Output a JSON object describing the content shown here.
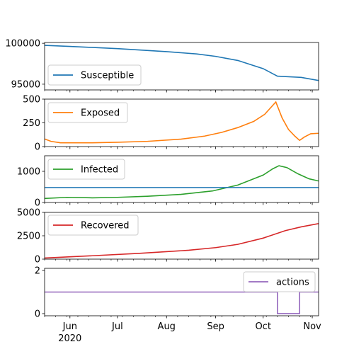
{
  "chart_data": {
    "type": "line",
    "x_axis": {
      "tick_labels": [
        "Jun",
        "Jul",
        "Aug",
        "Sep",
        "Oct",
        "Nov"
      ],
      "tick_dates": [
        "2020-06-01",
        "2020-07-01",
        "2020-08-01",
        "2020-09-01",
        "2020-10-01",
        "2020-11-01"
      ],
      "year_label": "2020",
      "xlim": [
        "2020-05-16",
        "2020-11-05"
      ]
    },
    "panels": [
      {
        "ylim": [
          94300,
          100100
        ],
        "yticks": [
          95000,
          100000
        ],
        "ytick_labels": [
          "95000",
          "100000"
        ],
        "legend_position": "lower-left",
        "series": [
          {
            "name": "Susceptible",
            "color": "#1f77b4",
            "x": [
              "2020-05-16",
              "2020-06-01",
              "2020-07-01",
              "2020-08-01",
              "2020-08-20",
              "2020-09-01",
              "2020-09-15",
              "2020-10-01",
              "2020-10-10",
              "2020-10-25",
              "2020-11-05"
            ],
            "y": [
              99750,
              99620,
              99350,
              98980,
              98700,
              98400,
              97900,
              96900,
              95980,
              95830,
              95450
            ]
          }
        ]
      },
      {
        "ylim": [
          0,
          500
        ],
        "yticks": [
          0,
          250,
          500
        ],
        "ytick_labels": [
          "0",
          "250",
          "500"
        ],
        "legend_position": "upper-left",
        "series": [
          {
            "name": "Exposed",
            "color": "#ff7f0e",
            "x": [
              "2020-05-16",
              "2020-05-20",
              "2020-05-26",
              "2020-06-15",
              "2020-07-01",
              "2020-07-20",
              "2020-08-10",
              "2020-08-25",
              "2020-09-05",
              "2020-09-15",
              "2020-09-25",
              "2020-10-02",
              "2020-10-09",
              "2020-10-13",
              "2020-10-17",
              "2020-10-21",
              "2020-10-24",
              "2020-10-27",
              "2020-10-31",
              "2020-11-05"
            ],
            "y": [
              80,
              55,
              40,
              40,
              45,
              55,
              78,
              110,
              150,
              200,
              265,
              340,
              470,
              300,
              180,
              110,
              65,
              100,
              135,
              140
            ]
          }
        ]
      },
      {
        "ylim": [
          0,
          1500
        ],
        "yticks": [
          0,
          1000
        ],
        "ytick_labels": [
          "0",
          "1000"
        ],
        "legend_position": "upper-left",
        "series": [
          {
            "name": "Infected",
            "color": "#2ca02c",
            "x": [
              "2020-05-16",
              "2020-05-30",
              "2020-06-15",
              "2020-07-01",
              "2020-07-20",
              "2020-08-10",
              "2020-08-30",
              "2020-09-15",
              "2020-10-01",
              "2020-10-07",
              "2020-10-11",
              "2020-10-16",
              "2020-10-23",
              "2020-10-30",
              "2020-11-05"
            ],
            "y": [
              130,
              165,
              150,
              165,
              200,
              260,
              370,
              560,
              880,
              1080,
              1180,
              1120,
              920,
              760,
              690
            ]
          },
          {
            "name": "",
            "color": "#1f77b4",
            "x": [
              "2020-05-16",
              "2020-11-05"
            ],
            "y": [
              480,
              480
            ]
          }
        ]
      },
      {
        "ylim": [
          0,
          5000
        ],
        "yticks": [
          0,
          2500,
          5000
        ],
        "ytick_labels": [
          "0",
          "2500",
          "5000"
        ],
        "legend_position": "upper-left",
        "series": [
          {
            "name": "Recovered",
            "color": "#d62728",
            "x": [
              "2020-05-16",
              "2020-06-15",
              "2020-07-15",
              "2020-08-15",
              "2020-09-01",
              "2020-09-15",
              "2020-10-01",
              "2020-10-15",
              "2020-10-25",
              "2020-11-05"
            ],
            "y": [
              120,
              360,
              620,
              950,
              1230,
              1580,
              2250,
              3050,
              3450,
              3800
            ]
          }
        ]
      },
      {
        "ylim": [
          -0.1,
          2.1
        ],
        "yticks": [
          0,
          2
        ],
        "ytick_labels": [
          "0",
          "2"
        ],
        "legend_position": "upper-right",
        "series": [
          {
            "name": "actions",
            "color": "#9467bd",
            "x": [
              "2020-05-16",
              "2020-10-10",
              "2020-10-10",
              "2020-10-24",
              "2020-10-24",
              "2020-11-05"
            ],
            "y": [
              1,
              1,
              0,
              0,
              1,
              1
            ]
          }
        ]
      }
    ]
  }
}
